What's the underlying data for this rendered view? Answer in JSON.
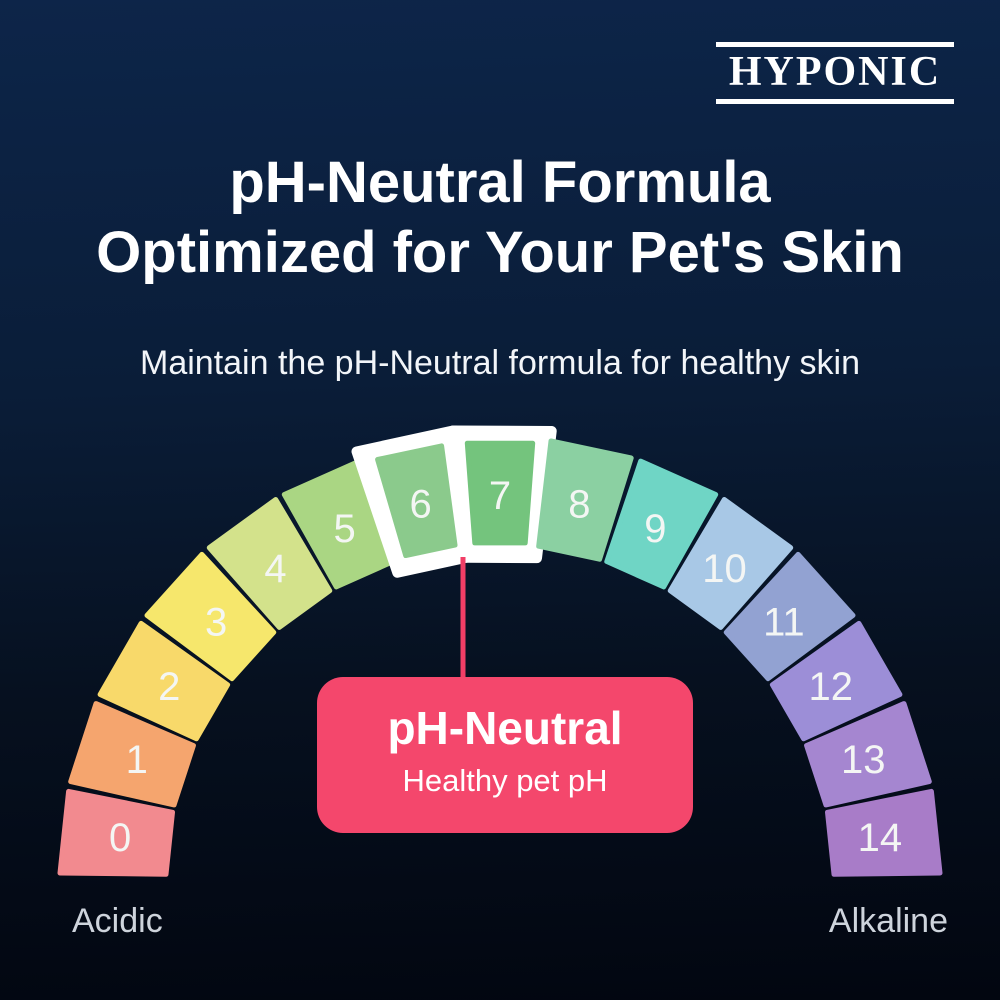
{
  "brand": {
    "name": "HYPONIC"
  },
  "header": {
    "title_line1": "pH-Neutral Formula",
    "title_line2": "Optimized for Your Pet's Skin",
    "subtitle": "Maintain the pH-Neutral formula for healthy skin"
  },
  "callout": {
    "title": "pH-Neutral",
    "subtitle": "Healthy pet pH",
    "color": "#f4476c",
    "connector_color": "#f23e66"
  },
  "chart_data": {
    "type": "gauge",
    "title": "pH scale arc",
    "categories": [
      "0",
      "1",
      "2",
      "3",
      "4",
      "5",
      "6",
      "7",
      "8",
      "9",
      "10",
      "11",
      "12",
      "13",
      "14"
    ],
    "colors": [
      "#f28a8f",
      "#f5a56e",
      "#f8d96a",
      "#f6e76c",
      "#d3e28b",
      "#aad683",
      "#8bca8c",
      "#74c47d",
      "#8bd0a2",
      "#6fd5c5",
      "#a8c8e6",
      "#92a2d2",
      "#9c8ed7",
      "#a586d0",
      "#a87cc8"
    ],
    "highlight": [
      "6",
      "7"
    ],
    "highlight_color": "#ffffff",
    "label_color": "#f4f6f4",
    "axis_left_label": "Acidic",
    "axis_right_label": "Alkaline",
    "arc_degrees": 180,
    "value_range": [
      0,
      14
    ]
  }
}
